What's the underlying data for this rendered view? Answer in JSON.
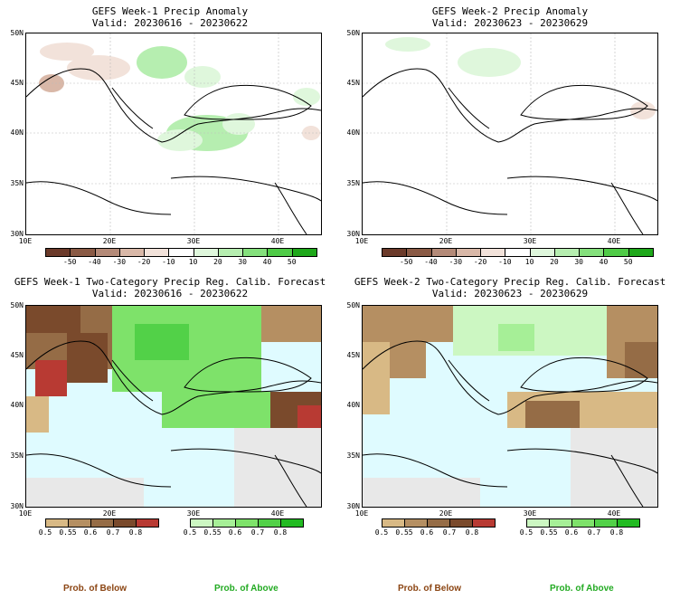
{
  "panels": [
    {
      "title": "GEFS Week-1 Precip Anomaly",
      "valid": "Valid: 20230616 - 20230622"
    },
    {
      "title": "GEFS Week-2 Precip Anomaly",
      "valid": "Valid: 20230623 - 20230629"
    },
    {
      "title": "GEFS Week-1 Two-Category Precip Reg. Calib. Forecast",
      "valid": "Valid: 20230616 - 20230622"
    },
    {
      "title": "GEFS Week-2 Two-Category Precip Reg. Calib. Forecast",
      "valid": "Valid: 20230623 - 20230629"
    }
  ],
  "lat_labels": [
    "50N",
    "45N",
    "40N",
    "35N",
    "30N"
  ],
  "lon_labels": [
    "10E",
    "20E",
    "30E",
    "40E"
  ],
  "anomaly_colorbar": {
    "labels": [
      "-50",
      "-40",
      "-30",
      "-20",
      "-10",
      "10",
      "20",
      "30",
      "40",
      "50"
    ],
    "colors": [
      "#6b3a2a",
      "#8a5a45",
      "#b48a78",
      "#d9b8a8",
      "#f2e2da",
      "#ffffff",
      "#dff7dc",
      "#b6eeb0",
      "#84e07c",
      "#4fcb47",
      "#1ea81a"
    ]
  },
  "prob_colorbar": {
    "below_labels": [
      "0.5",
      "0.55",
      "0.6",
      "0.7",
      "0.8"
    ],
    "below_colors": [
      "#d8b985",
      "#b58f62",
      "#956c46",
      "#7a4a2c",
      "#b83a33"
    ],
    "above_labels": [
      "0.5",
      "0.55",
      "0.6",
      "0.7",
      "0.8"
    ],
    "above_colors": [
      "#ccf7c2",
      "#a6ef97",
      "#7ee26a",
      "#52d148",
      "#22bb22"
    ]
  },
  "footer": {
    "below": "Prob. of Below",
    "above": "Prob. of Above",
    "below_color": "#8b4513",
    "above_color": "#22aa22"
  },
  "chart_data": {
    "type": "heatmap",
    "description_fields": [
      "4 map panels"
    ],
    "x_range": [
      10,
      45
    ],
    "y_range": [
      30,
      50
    ],
    "xlabel": "",
    "ylabel": ""
  }
}
